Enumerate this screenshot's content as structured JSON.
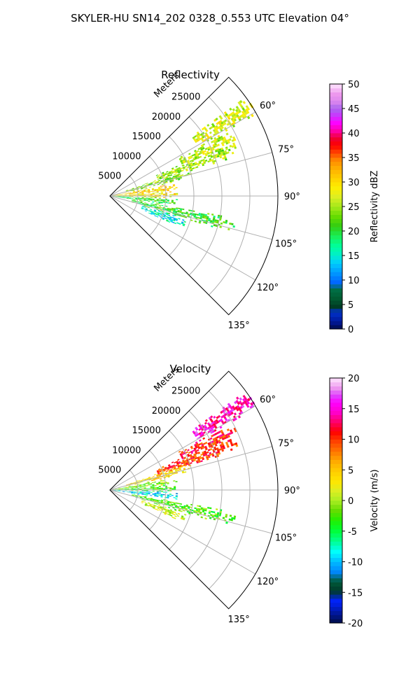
{
  "figure": {
    "title": "SKYLER-HU  SN14_202  0328_0.553 UTC Elevation 04°"
  },
  "chart_data": [
    {
      "type": "heatmap",
      "projection": "polar-sector",
      "title": "Reflectivity",
      "radial_axis_label": "Meters",
      "radial_ticks": [
        5000,
        10000,
        15000,
        20000,
        25000
      ],
      "radial_range": [
        0,
        30000
      ],
      "azimuth_ticks_deg": [
        60,
        75,
        90,
        105,
        120,
        135
      ],
      "azimuth_tick_labels": [
        "60°",
        "75°",
        "90°",
        "105°",
        "120°",
        "135°"
      ],
      "azimuth_range_deg": [
        45,
        135
      ],
      "grid": true,
      "colorbar": {
        "label": "Reflectivity dBZ",
        "range": [
          0,
          50
        ],
        "ticks": [
          0,
          5,
          10,
          15,
          20,
          25,
          30,
          35,
          40,
          45,
          50
        ],
        "colormap": "NWSRef"
      },
      "echo_bands": [
        {
          "azimuth_deg": 57,
          "range_m": [
            18000,
            31000
          ],
          "value": 27
        },
        {
          "azimuth_deg": 64,
          "range_m": [
            14000,
            25000
          ],
          "value": 26
        },
        {
          "azimuth_deg": 69,
          "range_m": [
            9000,
            24000
          ],
          "value": 25
        },
        {
          "azimuth_deg": 74,
          "range_m": [
            3000,
            15000
          ],
          "value": 24
        },
        {
          "azimuth_deg": 82,
          "range_m": [
            0,
            12000
          ],
          "value": 30
        },
        {
          "azimuth_deg": 88,
          "range_m": [
            0,
            12000
          ],
          "value": 29
        },
        {
          "azimuth_deg": 95,
          "range_m": [
            0,
            12000
          ],
          "value": 20
        },
        {
          "azimuth_deg": 103,
          "range_m": [
            4000,
            23000
          ],
          "value": 21
        },
        {
          "azimuth_deg": 110,
          "range_m": [
            6000,
            14000
          ],
          "value": 15
        }
      ]
    },
    {
      "type": "heatmap",
      "projection": "polar-sector",
      "title": "Velocity",
      "radial_axis_label": "Meters",
      "radial_ticks": [
        5000,
        10000,
        15000,
        20000,
        25000
      ],
      "radial_range": [
        0,
        30000
      ],
      "azimuth_ticks_deg": [
        60,
        75,
        90,
        105,
        120,
        135
      ],
      "azimuth_tick_labels": [
        "60°",
        "75°",
        "90°",
        "105°",
        "120°",
        "135°"
      ],
      "azimuth_range_deg": [
        45,
        135
      ],
      "grid": true,
      "colorbar": {
        "label": "Velocity (m/s)",
        "range": [
          -20,
          20
        ],
        "ticks": [
          -20,
          -15,
          -10,
          -5,
          0,
          5,
          10,
          15,
          20
        ],
        "colormap": "NWSVel"
      },
      "echo_bands": [
        {
          "azimuth_deg": 57,
          "range_m": [
            18000,
            31000
          ],
          "value": 15
        },
        {
          "azimuth_deg": 64,
          "range_m": [
            14000,
            25000
          ],
          "value": 11
        },
        {
          "azimuth_deg": 69,
          "range_m": [
            9000,
            24000
          ],
          "value": 10
        },
        {
          "azimuth_deg": 74,
          "range_m": [
            3000,
            15000
          ],
          "value": 4
        },
        {
          "azimuth_deg": 82,
          "range_m": [
            0,
            12000
          ],
          "value": -1
        },
        {
          "azimuth_deg": 88,
          "range_m": [
            0,
            12000
          ],
          "value": -3
        },
        {
          "azimuth_deg": 95,
          "range_m": [
            0,
            12000
          ],
          "value": -9
        },
        {
          "azimuth_deg": 103,
          "range_m": [
            4000,
            23000
          ],
          "value": -2
        },
        {
          "azimuth_deg": 110,
          "range_m": [
            6000,
            14000
          ],
          "value": 1
        }
      ]
    }
  ],
  "colors": {
    "frame": "#000000",
    "grid": "#b0b0b0"
  }
}
